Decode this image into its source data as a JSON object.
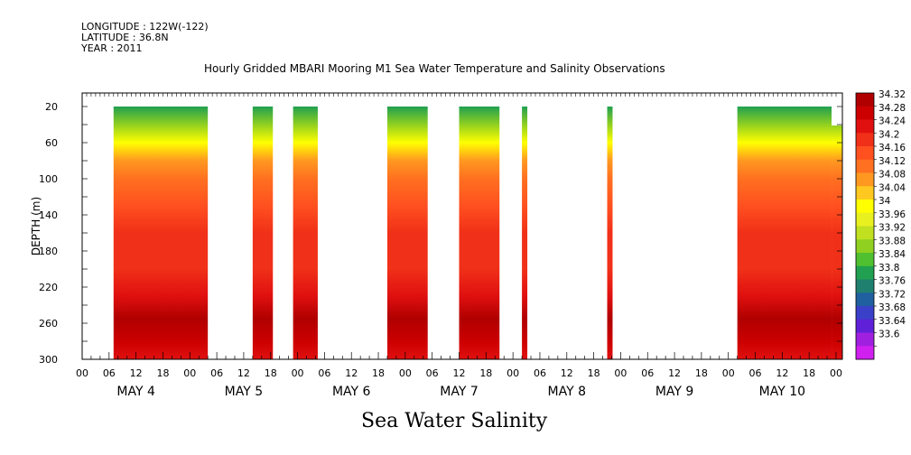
{
  "header": {
    "longitude": "LONGITUDE : 122W(-122)",
    "latitude": "LATITUDE : 36.8N",
    "year": "YEAR : 2011"
  },
  "chart_data": {
    "type": "heatmap",
    "title": "Hourly Gridded MBARI Mooring M1 Sea Water Temperature and Salinity Observations",
    "bottom_title": "Sea Water Salinity",
    "ylabel": "DEPTH (m)",
    "y_axis": {
      "range": [
        300,
        5
      ],
      "ticks": [
        20,
        60,
        100,
        140,
        180,
        220,
        260,
        300
      ],
      "reversed": true
    },
    "x_axis": {
      "range_hours": [
        0,
        168
      ],
      "hour_ticks": [
        "00",
        "06",
        "12",
        "18",
        "00",
        "06",
        "12",
        "18",
        "00",
        "06",
        "12",
        "18",
        "00",
        "06",
        "12",
        "18",
        "00",
        "06",
        "12",
        "18",
        "00",
        "06",
        "12",
        "18",
        "00",
        "06",
        "12",
        "18",
        "00"
      ],
      "day_labels": [
        "MAY 4",
        "MAY 5",
        "MAY 6",
        "MAY 7",
        "MAY 8",
        "MAY 9",
        "MAY 10"
      ]
    },
    "colorbar": {
      "labels": [
        "34.32",
        "34.28",
        "34.24",
        "34.2",
        "34.16",
        "34.12",
        "34.08",
        "34.04",
        "34",
        "33.96",
        "33.92",
        "33.88",
        "33.84",
        "33.8",
        "33.76",
        "33.72",
        "33.68",
        "33.64",
        "33.6"
      ],
      "colors": [
        "#b00000",
        "#cc0000",
        "#e01010",
        "#f03018",
        "#ff5020",
        "#ff7020",
        "#ff9820",
        "#ffc820",
        "#ffff00",
        "#e8f020",
        "#c0e020",
        "#90d020",
        "#50c030",
        "#20a050",
        "#208070",
        "#2060a0",
        "#3a40c8",
        "#6020d8",
        "#a020e0",
        "#d020f0"
      ]
    },
    "data_segments": [
      {
        "start_hour": 7,
        "end_hour": 28,
        "surface_depth": 20
      },
      {
        "start_hour": 38,
        "end_hour": 42.5,
        "surface_depth": 20
      },
      {
        "start_hour": 47,
        "end_hour": 52.5,
        "surface_depth": 20
      },
      {
        "start_hour": 68,
        "end_hour": 77,
        "surface_depth": 20
      },
      {
        "start_hour": 84,
        "end_hour": 93,
        "surface_depth": 20
      },
      {
        "start_hour": 98,
        "end_hour": 99.2,
        "surface_depth": 20
      },
      {
        "start_hour": 117,
        "end_hour": 118.2,
        "surface_depth": 20
      },
      {
        "start_hour": 146,
        "end_hour": 167,
        "surface_depth": 20
      },
      {
        "start_hour": 167,
        "end_hour": 169.5,
        "surface_depth": 41
      }
    ],
    "salinity_profile": [
      {
        "depth": 20,
        "value": 33.84
      },
      {
        "depth": 40,
        "value": 33.9
      },
      {
        "depth": 60,
        "value": 34.02
      },
      {
        "depth": 80,
        "value": 34.08
      },
      {
        "depth": 100,
        "value": 34.12
      },
      {
        "depth": 130,
        "value": 34.16
      },
      {
        "depth": 160,
        "value": 34.18
      },
      {
        "depth": 200,
        "value": 34.2
      },
      {
        "depth": 230,
        "value": 34.24
      },
      {
        "depth": 255,
        "value": 34.3
      },
      {
        "depth": 280,
        "value": 34.26
      },
      {
        "depth": 300,
        "value": 34.22
      }
    ]
  }
}
